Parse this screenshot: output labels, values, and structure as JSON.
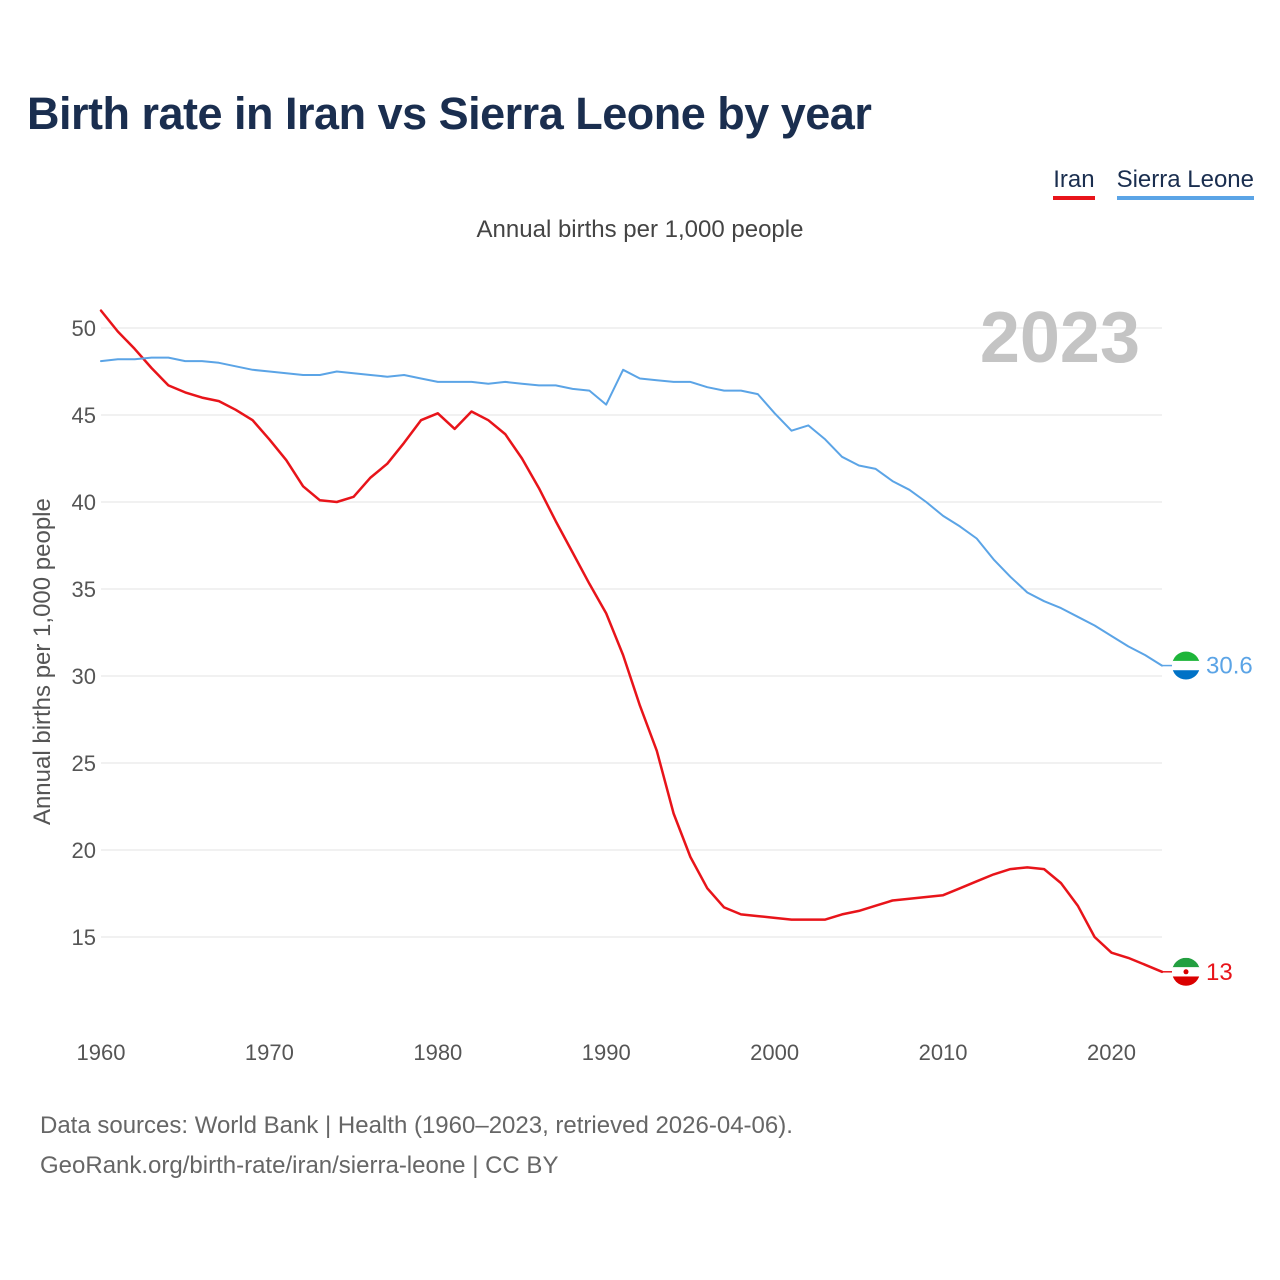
{
  "chart_data": {
    "type": "line",
    "title": "Birth rate in Iran vs Sierra Leone by year",
    "subtitle": "Annual births per 1,000 people",
    "ylabel": "Annual births per 1,000 people",
    "xlabel": "",
    "highlight_year": "2023",
    "xlim": [
      1960,
      2023
    ],
    "ylim": [
      10,
      52
    ],
    "x_ticks": [
      1960,
      1970,
      1980,
      1990,
      2000,
      2010,
      2020
    ],
    "y_ticks": [
      15,
      20,
      25,
      30,
      35,
      40,
      45,
      50
    ],
    "grid": true,
    "legend_position": "top-right",
    "x": [
      1960,
      1961,
      1962,
      1963,
      1964,
      1965,
      1966,
      1967,
      1968,
      1969,
      1970,
      1971,
      1972,
      1973,
      1974,
      1975,
      1976,
      1977,
      1978,
      1979,
      1980,
      1981,
      1982,
      1983,
      1984,
      1985,
      1986,
      1987,
      1988,
      1989,
      1990,
      1991,
      1992,
      1993,
      1994,
      1995,
      1996,
      1997,
      1998,
      1999,
      2000,
      2001,
      2002,
      2003,
      2004,
      2005,
      2006,
      2007,
      2008,
      2009,
      2010,
      2011,
      2012,
      2013,
      2014,
      2015,
      2016,
      2017,
      2018,
      2019,
      2020,
      2021,
      2022,
      2023
    ],
    "series": [
      {
        "name": "Iran",
        "color": "#e8141a",
        "end_label": "13",
        "flag_icon": "iran-flag-icon",
        "values": [
          51.0,
          49.8,
          48.8,
          47.7,
          46.7,
          46.3,
          46.0,
          45.8,
          45.3,
          44.7,
          43.6,
          42.4,
          40.9,
          40.1,
          40.0,
          40.3,
          41.4,
          42.2,
          43.4,
          44.7,
          45.1,
          44.2,
          45.2,
          44.7,
          43.9,
          42.5,
          40.8,
          38.9,
          37.1,
          35.3,
          33.6,
          31.2,
          28.3,
          25.7,
          22.1,
          19.6,
          17.8,
          16.7,
          16.3,
          16.2,
          16.1,
          16.0,
          16.0,
          16.0,
          16.3,
          16.5,
          16.8,
          17.1,
          17.2,
          17.3,
          17.4,
          17.8,
          18.2,
          18.6,
          18.9,
          19.0,
          18.9,
          18.1,
          16.8,
          15.0,
          14.1,
          13.8,
          13.4,
          13.0
        ]
      },
      {
        "name": "Sierra Leone",
        "color": "#5ba4e6",
        "end_label": "30.6",
        "flag_icon": "sierra-leone-flag-icon",
        "values": [
          48.1,
          48.2,
          48.2,
          48.3,
          48.3,
          48.1,
          48.1,
          48.0,
          47.8,
          47.6,
          47.5,
          47.4,
          47.3,
          47.3,
          47.5,
          47.4,
          47.3,
          47.2,
          47.3,
          47.1,
          46.9,
          46.9,
          46.9,
          46.8,
          46.9,
          46.8,
          46.7,
          46.7,
          46.5,
          46.4,
          45.6,
          47.6,
          47.1,
          47.0,
          46.9,
          46.9,
          46.6,
          46.4,
          46.4,
          46.2,
          45.1,
          44.1,
          44.4,
          43.6,
          42.6,
          42.1,
          41.9,
          41.2,
          40.7,
          40.0,
          39.2,
          38.6,
          37.9,
          36.7,
          35.7,
          34.8,
          34.3,
          33.9,
          33.4,
          32.9,
          32.3,
          31.7,
          31.2,
          30.6
        ]
      }
    ]
  },
  "source_line": "Data sources: World Bank | Health (1960–2023, retrieved 2026-04-06).",
  "credit_line": "GeoRank.org/birth-rate/iran/sierra-leone | CC BY"
}
